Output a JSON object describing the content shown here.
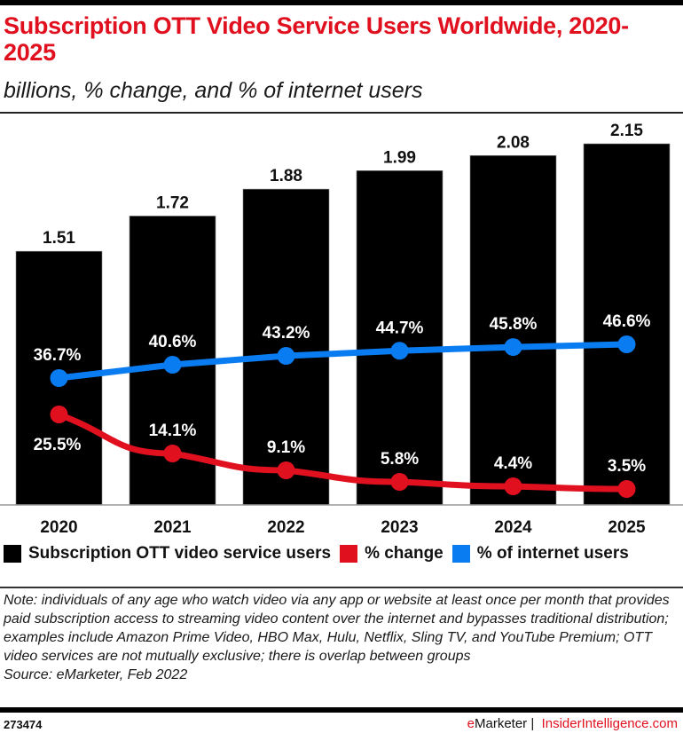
{
  "header": {
    "title": "Subscription OTT Video Service Users Worldwide, 2020-2025",
    "subtitle": "billions, % change, and % of internet users"
  },
  "colors": {
    "bar": "#000000",
    "change": "#e0101f",
    "internet": "#0a7cf2",
    "brand_red": "#e0101f"
  },
  "chart_data": {
    "type": "bar",
    "title": "Subscription OTT Video Service Users Worldwide, 2020-2025",
    "subtitle": "billions, % change, and % of internet users",
    "categories": [
      "2020",
      "2021",
      "2022",
      "2023",
      "2024",
      "2025"
    ],
    "series": [
      {
        "name": "Subscription OTT video service users",
        "type": "bar",
        "unit": "billions",
        "values": [
          1.51,
          1.72,
          1.88,
          1.99,
          2.08,
          2.15
        ],
        "labels": [
          "1.51",
          "1.72",
          "1.88",
          "1.99",
          "2.08",
          "2.15"
        ]
      },
      {
        "name": "% change",
        "type": "line",
        "unit": "%",
        "values": [
          25.5,
          14.1,
          9.1,
          5.8,
          4.4,
          3.5
        ],
        "labels": [
          "25.5%",
          "14.1%",
          "9.1%",
          "5.8%",
          "4.4%",
          "3.5%"
        ]
      },
      {
        "name": "% of internet users",
        "type": "line",
        "unit": "%",
        "values": [
          36.7,
          40.6,
          43.2,
          44.7,
          45.8,
          46.6
        ],
        "labels": [
          "36.7%",
          "40.6%",
          "43.2%",
          "44.7%",
          "45.8%",
          "46.6%"
        ]
      }
    ],
    "xlabel": "",
    "ylabel": "",
    "grid": false,
    "legend_position": "bottom"
  },
  "legend": [
    {
      "label": "Subscription OTT video service users",
      "color": "#000000"
    },
    {
      "label": "% change",
      "color": "#e0101f"
    },
    {
      "label": "% of internet users",
      "color": "#0a7cf2"
    }
  ],
  "footer": {
    "note": "Note: individuals of any age who watch video via any app or website at least once per month that provides paid subscription access to streaming video content over the internet and bypasses traditional distribution; examples include Amazon Prime Video, HBO Max, Hulu, Netflix, Sling TV, and YouTube Premium; OTT video services are not mutually exclusive; there is overlap between groups",
    "source": "Source: eMarketer, Feb 2022",
    "chart_id": "273474",
    "brand_e": "e",
    "brand_rest": "Marketer",
    "separator": " |  ",
    "site": "InsiderIntelligence.com"
  }
}
